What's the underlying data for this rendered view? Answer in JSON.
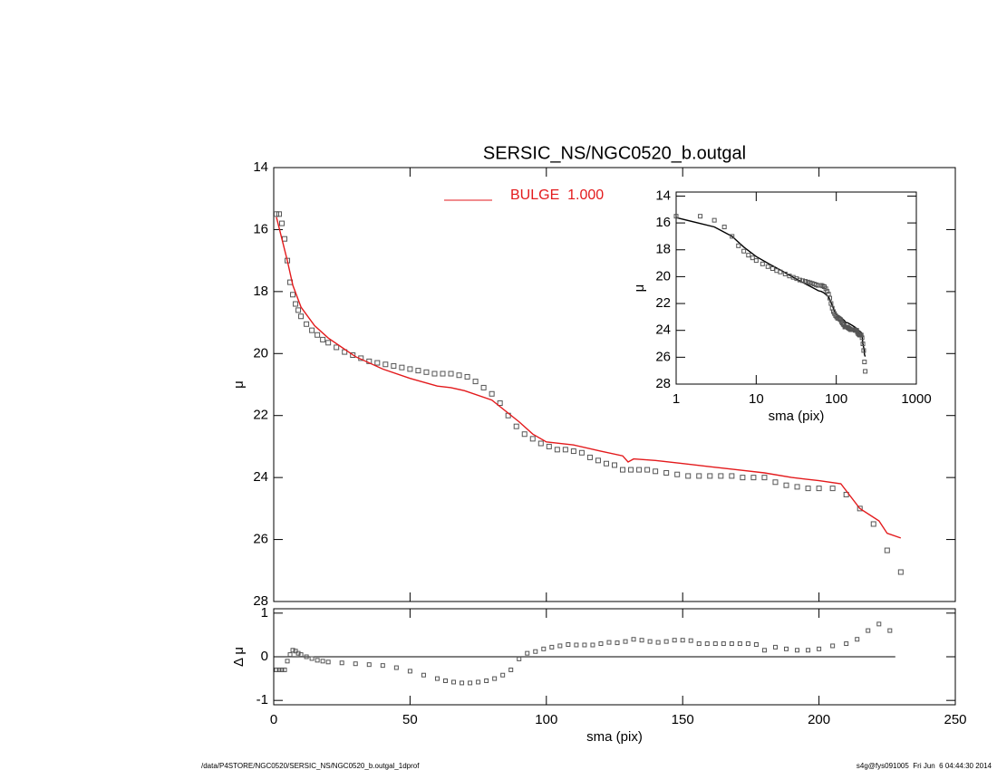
{
  "chart_data": [
    {
      "type": "scatter",
      "title": "SERSIC_NS/NGC0520_b.outgal",
      "ylabel": "μ",
      "xlim": [
        0,
        250
      ],
      "xticks": [
        0,
        50,
        100,
        150,
        200,
        250
      ],
      "show_xtick_labels": false,
      "ylim": [
        28,
        14
      ],
      "yticks": [
        14,
        16,
        18,
        20,
        22,
        24,
        26,
        28
      ],
      "series": [
        {
          "style": "markers",
          "color": "#555555",
          "x": [
            1,
            2,
            3,
            4,
            5,
            6,
            7,
            8,
            9,
            10,
            12,
            14,
            16,
            18,
            20,
            23,
            26,
            29,
            32,
            35,
            38,
            41,
            44,
            47,
            50,
            53,
            56,
            59,
            62,
            65,
            68,
            71,
            74,
            77,
            80,
            83,
            86,
            89,
            92,
            95,
            98,
            101,
            104,
            107,
            110,
            113,
            116,
            119,
            122,
            125,
            128,
            131,
            134,
            137,
            140,
            144,
            148,
            152,
            156,
            160,
            164,
            168,
            172,
            176,
            180,
            184,
            188,
            192,
            196,
            200,
            205,
            210,
            215,
            220,
            225,
            230
          ],
          "values": [
            15.5,
            15.5,
            15.8,
            16.3,
            17.0,
            17.7,
            18.1,
            18.4,
            18.6,
            18.8,
            19.05,
            19.25,
            19.4,
            19.55,
            19.65,
            19.8,
            19.95,
            20.05,
            20.15,
            20.25,
            20.3,
            20.35,
            20.4,
            20.45,
            20.5,
            20.55,
            20.6,
            20.65,
            20.65,
            20.65,
            20.7,
            20.75,
            20.9,
            21.1,
            21.3,
            21.6,
            22.0,
            22.35,
            22.6,
            22.75,
            22.9,
            23.0,
            23.1,
            23.1,
            23.15,
            23.2,
            23.35,
            23.45,
            23.55,
            23.6,
            23.75,
            23.75,
            23.75,
            23.75,
            23.8,
            23.85,
            23.9,
            23.95,
            23.95,
            23.95,
            23.95,
            23.95,
            24.0,
            24.0,
            24.0,
            24.15,
            24.25,
            24.3,
            24.35,
            24.35,
            24.35,
            24.55,
            25.0,
            25.5,
            26.35,
            27.05
          ]
        },
        {
          "style": "line",
          "name": "BULGE  1.000",
          "color": "#e31a1c",
          "x": [
            1,
            3,
            5,
            7,
            10,
            15,
            20,
            30,
            40,
            50,
            60,
            65,
            70,
            80,
            90,
            95,
            100,
            110,
            120,
            128,
            130,
            132,
            140,
            150,
            160,
            170,
            180,
            190,
            200,
            208,
            215,
            222,
            225,
            230
          ],
          "values": [
            15.6,
            16.3,
            17.0,
            17.8,
            18.5,
            19.1,
            19.5,
            20.1,
            20.5,
            20.8,
            21.05,
            21.1,
            21.2,
            21.5,
            22.2,
            22.6,
            22.85,
            22.95,
            23.15,
            23.3,
            23.5,
            23.4,
            23.45,
            23.55,
            23.65,
            23.75,
            23.85,
            24.0,
            24.1,
            24.2,
            25.0,
            25.4,
            25.8,
            25.95
          ]
        }
      ]
    },
    {
      "type": "scatter",
      "ylabel": "Δ μ",
      "xlabel": "sma (pix)",
      "xlim": [
        0,
        250
      ],
      "xticks": [
        0,
        50,
        100,
        150,
        200,
        250
      ],
      "ylim": [
        -1.1,
        1.1
      ],
      "yticks": [
        -1,
        0,
        1
      ],
      "hline": 0,
      "series": [
        {
          "style": "markers",
          "color": "#555555",
          "x": [
            1,
            2,
            3,
            4,
            5,
            6,
            7,
            8,
            9,
            10,
            12,
            14,
            16,
            18,
            20,
            25,
            30,
            35,
            40,
            45,
            50,
            55,
            60,
            63,
            66,
            69,
            72,
            75,
            78,
            81,
            84,
            87,
            90,
            93,
            96,
            99,
            102,
            105,
            108,
            111,
            114,
            117,
            120,
            123,
            126,
            129,
            132,
            135,
            138,
            141,
            144,
            147,
            150,
            153,
            156,
            159,
            162,
            165,
            168,
            171,
            174,
            177,
            180,
            184,
            188,
            192,
            196,
            200,
            205,
            210,
            214,
            218,
            222,
            226
          ],
          "values": [
            -0.3,
            -0.3,
            -0.3,
            -0.3,
            -0.1,
            0.05,
            0.15,
            0.13,
            0.08,
            0.05,
            0.0,
            -0.04,
            -0.08,
            -0.1,
            -0.12,
            -0.14,
            -0.16,
            -0.18,
            -0.2,
            -0.25,
            -0.33,
            -0.42,
            -0.5,
            -0.55,
            -0.58,
            -0.6,
            -0.6,
            -0.58,
            -0.55,
            -0.5,
            -0.42,
            -0.3,
            -0.05,
            0.08,
            0.12,
            0.18,
            0.22,
            0.25,
            0.28,
            0.27,
            0.27,
            0.27,
            0.3,
            0.33,
            0.32,
            0.35,
            0.4,
            0.38,
            0.35,
            0.33,
            0.35,
            0.38,
            0.38,
            0.37,
            0.3,
            0.3,
            0.3,
            0.3,
            0.3,
            0.3,
            0.3,
            0.28,
            0.15,
            0.22,
            0.18,
            0.15,
            0.15,
            0.18,
            0.25,
            0.3,
            0.4,
            0.6,
            0.75,
            0.6
          ]
        }
      ]
    },
    {
      "type": "scatter",
      "ylabel": "μ",
      "xlabel": "sma (pix)",
      "xscale": "log",
      "xlim": [
        1,
        1000
      ],
      "xticks": [
        1,
        10,
        100,
        1000
      ],
      "ylim": [
        28,
        13.7
      ],
      "yticks": [
        14,
        16,
        18,
        20,
        22,
        24,
        26,
        28
      ],
      "series": [
        {
          "style": "line",
          "color": "#000000",
          "x": [
            1,
            3,
            5,
            7,
            10,
            15,
            20,
            30,
            40,
            50,
            60,
            65,
            70,
            80,
            90,
            95,
            100,
            110,
            120,
            128,
            130,
            132,
            140,
            150,
            160,
            170,
            180,
            190,
            200,
            208,
            215,
            222,
            225,
            230
          ],
          "values": [
            15.6,
            16.3,
            17.0,
            17.8,
            18.5,
            19.1,
            19.5,
            20.1,
            20.5,
            20.8,
            21.05,
            21.1,
            21.2,
            21.5,
            22.2,
            22.6,
            22.85,
            22.95,
            23.15,
            23.3,
            23.5,
            23.4,
            23.45,
            23.55,
            23.65,
            23.75,
            23.85,
            24.0,
            24.1,
            24.2,
            25.0,
            25.4,
            25.8,
            25.95
          ]
        },
        {
          "style": "markers",
          "color": "#555555",
          "x": [
            1,
            2,
            3,
            4,
            5,
            6,
            7,
            8,
            9,
            10,
            12,
            14,
            16,
            18,
            20,
            23,
            26,
            29,
            32,
            35,
            38,
            41,
            44,
            47,
            50,
            53,
            56,
            59,
            62,
            65,
            68,
            71,
            74,
            77,
            80,
            83,
            86,
            89,
            92,
            95,
            98,
            101,
            104,
            107,
            110,
            113,
            116,
            119,
            122,
            125,
            128,
            131,
            134,
            137,
            140,
            144,
            148,
            152,
            156,
            160,
            164,
            168,
            172,
            176,
            180,
            184,
            188,
            192,
            196,
            200,
            205,
            210,
            215,
            220,
            225,
            230
          ],
          "values": [
            15.5,
            15.5,
            15.8,
            16.3,
            17.0,
            17.7,
            18.1,
            18.4,
            18.6,
            18.8,
            19.05,
            19.25,
            19.4,
            19.55,
            19.65,
            19.8,
            19.95,
            20.05,
            20.15,
            20.25,
            20.3,
            20.35,
            20.4,
            20.45,
            20.5,
            20.55,
            20.6,
            20.65,
            20.65,
            20.65,
            20.7,
            20.75,
            20.9,
            21.1,
            21.3,
            21.6,
            22.0,
            22.35,
            22.6,
            22.75,
            22.9,
            23.0,
            23.1,
            23.1,
            23.15,
            23.2,
            23.35,
            23.45,
            23.55,
            23.6,
            23.75,
            23.75,
            23.75,
            23.75,
            23.8,
            23.85,
            23.9,
            23.95,
            23.95,
            23.95,
            23.95,
            23.95,
            24.0,
            24.0,
            24.0,
            24.15,
            24.25,
            24.3,
            24.35,
            24.35,
            24.35,
            24.55,
            25.0,
            25.5,
            26.35,
            27.05
          ]
        }
      ]
    }
  ],
  "footer": {
    "left": "/data/P4STORE/NGC0520/SERSIC_NS/NGC0520_b.outgal_1dprof",
    "right": "s4g@fys091005  Fri Jun  6 04:44:30 2014"
  }
}
